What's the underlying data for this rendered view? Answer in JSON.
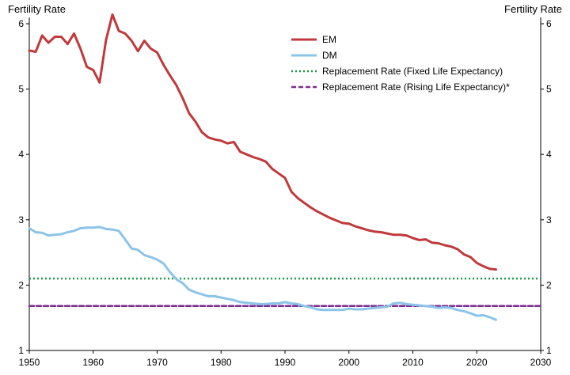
{
  "chart_data": {
    "type": "line",
    "ylabel_left": "Fertility Rate",
    "ylabel_right": "Fertility Rate",
    "xlim": [
      1950,
      2030
    ],
    "ylim": [
      1,
      6
    ],
    "x_ticks": [
      "1950",
      "1960",
      "1970",
      "1980",
      "1990",
      "2000",
      "2010",
      "2020",
      "2030"
    ],
    "x_tick_values": [
      1950,
      1960,
      1970,
      1980,
      1990,
      2000,
      2010,
      2020,
      2030
    ],
    "y_ticks": [
      "1",
      "2",
      "3",
      "4",
      "5",
      "6"
    ],
    "y_tick_values": [
      1,
      2,
      3,
      4,
      5,
      6
    ],
    "legend_position": "top-right",
    "series": [
      {
        "name": "EM",
        "color": "#C0393B",
        "style": "solid",
        "x": [
          1950,
          1951,
          1952,
          1953,
          1954,
          1955,
          1956,
          1957,
          1958,
          1959,
          1960,
          1961,
          1962,
          1963,
          1964,
          1965,
          1966,
          1967,
          1968,
          1969,
          1970,
          1971,
          1972,
          1973,
          1974,
          1975,
          1976,
          1977,
          1978,
          1979,
          1980,
          1981,
          1982,
          1983,
          1984,
          1985,
          1986,
          1987,
          1988,
          1989,
          1990,
          1991,
          1992,
          1993,
          1994,
          1995,
          1996,
          1997,
          1998,
          1999,
          2000,
          2001,
          2002,
          2003,
          2004,
          2005,
          2006,
          2007,
          2008,
          2009,
          2010,
          2011,
          2012,
          2013,
          2014,
          2015,
          2016,
          2017,
          2018,
          2019,
          2020,
          2021,
          2022,
          2023
        ],
        "values": [
          5.59,
          5.57,
          5.82,
          5.71,
          5.8,
          5.8,
          5.69,
          5.85,
          5.62,
          5.34,
          5.29,
          5.1,
          5.75,
          6.14,
          5.89,
          5.85,
          5.74,
          5.58,
          5.74,
          5.62,
          5.56,
          5.37,
          5.21,
          5.06,
          4.86,
          4.63,
          4.5,
          4.34,
          4.26,
          4.23,
          4.21,
          4.17,
          4.19,
          4.04,
          4.0,
          3.96,
          3.93,
          3.89,
          3.78,
          3.71,
          3.64,
          3.43,
          3.33,
          3.26,
          3.19,
          3.13,
          3.08,
          3.03,
          2.99,
          2.95,
          2.94,
          2.9,
          2.87,
          2.84,
          2.82,
          2.81,
          2.79,
          2.77,
          2.77,
          2.76,
          2.72,
          2.69,
          2.7,
          2.65,
          2.64,
          2.61,
          2.59,
          2.55,
          2.47,
          2.43,
          2.34,
          2.29,
          2.25,
          2.24
        ]
      },
      {
        "name": "DM",
        "color": "#8BC4E8",
        "style": "solid",
        "x": [
          1950,
          1951,
          1952,
          1953,
          1954,
          1955,
          1956,
          1957,
          1958,
          1959,
          1960,
          1961,
          1962,
          1963,
          1964,
          1965,
          1966,
          1967,
          1968,
          1969,
          1970,
          1971,
          1972,
          1973,
          1974,
          1975,
          1976,
          1977,
          1978,
          1979,
          1980,
          1981,
          1982,
          1983,
          1984,
          1985,
          1986,
          1987,
          1988,
          1989,
          1990,
          1991,
          1992,
          1993,
          1994,
          1995,
          1996,
          1997,
          1998,
          1999,
          2000,
          2001,
          2002,
          2003,
          2004,
          2005,
          2006,
          2007,
          2008,
          2009,
          2010,
          2011,
          2012,
          2013,
          2014,
          2015,
          2016,
          2017,
          2018,
          2019,
          2020,
          2021,
          2022,
          2023
        ],
        "values": [
          2.87,
          2.81,
          2.8,
          2.76,
          2.77,
          2.78,
          2.81,
          2.83,
          2.87,
          2.88,
          2.88,
          2.89,
          2.86,
          2.85,
          2.83,
          2.7,
          2.56,
          2.54,
          2.46,
          2.43,
          2.39,
          2.33,
          2.2,
          2.09,
          2.03,
          1.93,
          1.89,
          1.86,
          1.83,
          1.83,
          1.81,
          1.79,
          1.77,
          1.74,
          1.73,
          1.72,
          1.71,
          1.71,
          1.72,
          1.72,
          1.74,
          1.72,
          1.71,
          1.68,
          1.66,
          1.63,
          1.62,
          1.62,
          1.62,
          1.62,
          1.64,
          1.63,
          1.63,
          1.64,
          1.65,
          1.66,
          1.67,
          1.72,
          1.73,
          1.71,
          1.7,
          1.69,
          1.68,
          1.67,
          1.65,
          1.66,
          1.65,
          1.62,
          1.6,
          1.57,
          1.53,
          1.54,
          1.51,
          1.47
        ]
      },
      {
        "name": "Replacement Rate (Fixed Life Expectancy)",
        "color": "#1E9A48",
        "style": "dotted",
        "x": [
          1950,
          2030
        ],
        "values": [
          2.1,
          2.1
        ]
      },
      {
        "name": "Replacement Rate (Rising Life Expectancy)*",
        "color": "#7B2D8E",
        "style": "dashed",
        "x": [
          1950,
          2030
        ],
        "values": [
          1.68,
          1.68
        ]
      }
    ]
  }
}
